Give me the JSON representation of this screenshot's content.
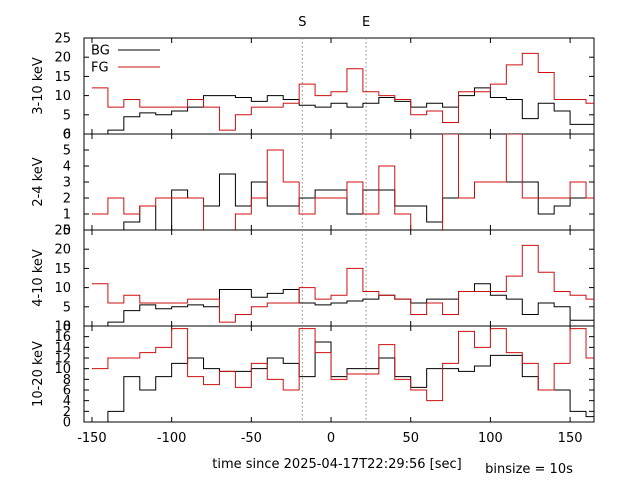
{
  "chart_data": {
    "type": "line",
    "step": true,
    "x": [
      -150,
      -140,
      -130,
      -120,
      -110,
      -100,
      -90,
      -80,
      -70,
      -60,
      -50,
      -40,
      -30,
      -20,
      -10,
      0,
      10,
      20,
      30,
      40,
      50,
      60,
      70,
      80,
      90,
      100,
      110,
      120,
      130,
      140,
      150,
      160
    ],
    "xlim": [
      -155,
      165
    ],
    "xticks": [
      -150,
      -100,
      -50,
      0,
      50,
      100,
      150
    ],
    "xlabel": "time since 2025-04-17T22:29:56 [sec]",
    "binsize_label": "binsize = 10s",
    "markers": [
      {
        "label": "S",
        "x": -18
      },
      {
        "label": "E",
        "x": 22
      }
    ],
    "legend": {
      "position": "top-left",
      "entries": [
        "BG",
        "FG"
      ]
    },
    "colors": {
      "BG": "#000000",
      "FG": "#cc1111",
      "marker_line": "#888888"
    },
    "panels": [
      {
        "ylabel": "3-10 keV",
        "ylim": [
          0,
          25
        ],
        "yticks": [
          0,
          5,
          10,
          15,
          20,
          25
        ],
        "series": [
          {
            "name": "BG",
            "values": [
              0,
              1,
              4.5,
              5.5,
              5,
              6,
              7,
              10,
              10,
              9.5,
              8.5,
              10,
              9,
              7.5,
              7,
              8,
              7,
              8,
              9.5,
              8.5,
              7,
              8,
              7,
              10,
              12,
              9.5,
              9,
              4,
              8,
              6,
              2.5,
              2.5
            ]
          },
          {
            "name": "FG",
            "values": [
              12,
              7,
              9,
              7,
              7,
              7,
              9,
              7,
              1,
              5,
              7,
              7,
              8,
              13,
              10,
              11,
              17,
              11,
              10,
              9,
              5,
              6,
              3,
              11,
              11,
              13,
              18,
              21,
              16,
              9,
              9,
              8
            ]
          }
        ]
      },
      {
        "ylabel": "2-4 keV",
        "ylim": [
          0,
          6
        ],
        "yticks": [
          0,
          1,
          2,
          3,
          4,
          5,
          6
        ],
        "series": [
          {
            "name": "BG",
            "values": [
              0,
              0,
              0.5,
              1.5,
              0,
              2.5,
              2,
              1.5,
              3.5,
              1.5,
              3,
              1.5,
              1.5,
              2,
              2.5,
              2.5,
              1,
              2.5,
              2.5,
              1.5,
              1.5,
              0.5,
              2,
              2,
              3,
              3,
              3,
              3,
              1,
              1.5,
              2,
              2
            ]
          },
          {
            "name": "FG",
            "values": [
              1,
              2,
              1,
              1.5,
              2,
              2,
              2,
              0,
              0,
              1,
              2,
              5,
              3,
              1,
              2,
              2,
              3,
              1,
              4,
              1,
              0,
              0,
              6,
              2,
              3,
              3,
              6,
              2,
              2,
              2,
              3,
              2
            ]
          }
        ]
      },
      {
        "ylabel": "4-10 keV",
        "ylim": [
          0,
          25
        ],
        "yticks": [
          0,
          5,
          10,
          15,
          20,
          25
        ],
        "series": [
          {
            "name": "BG",
            "values": [
              0,
              1,
              4,
              5.5,
              4.5,
              5,
              5.5,
              5,
              9.5,
              9.5,
              7.5,
              8.5,
              9.5,
              6,
              5.5,
              6,
              6.5,
              7,
              8,
              7,
              6,
              7,
              7,
              9,
              11,
              8,
              7,
              3,
              6,
              5,
              1.5,
              1.5
            ]
          },
          {
            "name": "FG",
            "values": [
              11,
              6,
              8,
              6,
              6,
              6,
              7,
              7,
              1,
              3,
              5,
              6,
              6,
              10,
              7,
              8,
              15,
              9,
              8,
              7,
              3,
              6,
              3,
              9,
              9,
              9,
              13,
              21,
              14,
              9,
              8,
              7
            ]
          }
        ]
      },
      {
        "ylabel": "10-20 keV",
        "ylim": [
          0,
          18
        ],
        "yticks": [
          0,
          2,
          4,
          6,
          8,
          10,
          12,
          14,
          16,
          18
        ],
        "series": [
          {
            "name": "BG",
            "values": [
              0,
              2,
              8.5,
              6,
              8.5,
              11,
              12,
              10,
              9.5,
              9.5,
              10,
              12,
              11,
              8.5,
              15,
              8.5,
              10,
              10,
              12,
              8.5,
              6.5,
              10,
              10,
              9.5,
              10.5,
              12.5,
              12.5,
              8.5,
              6,
              6,
              2,
              1
            ]
          },
          {
            "name": "FG",
            "values": [
              10,
              12,
              12,
              13,
              14,
              17.5,
              8.5,
              7,
              9.5,
              6.5,
              11,
              8,
              6,
              17.5,
              13,
              8,
              9,
              9,
              14.5,
              8,
              6,
              4,
              11,
              17,
              14,
              17.5,
              13,
              11,
              6,
              11,
              17.5,
              12
            ]
          }
        ]
      }
    ]
  }
}
